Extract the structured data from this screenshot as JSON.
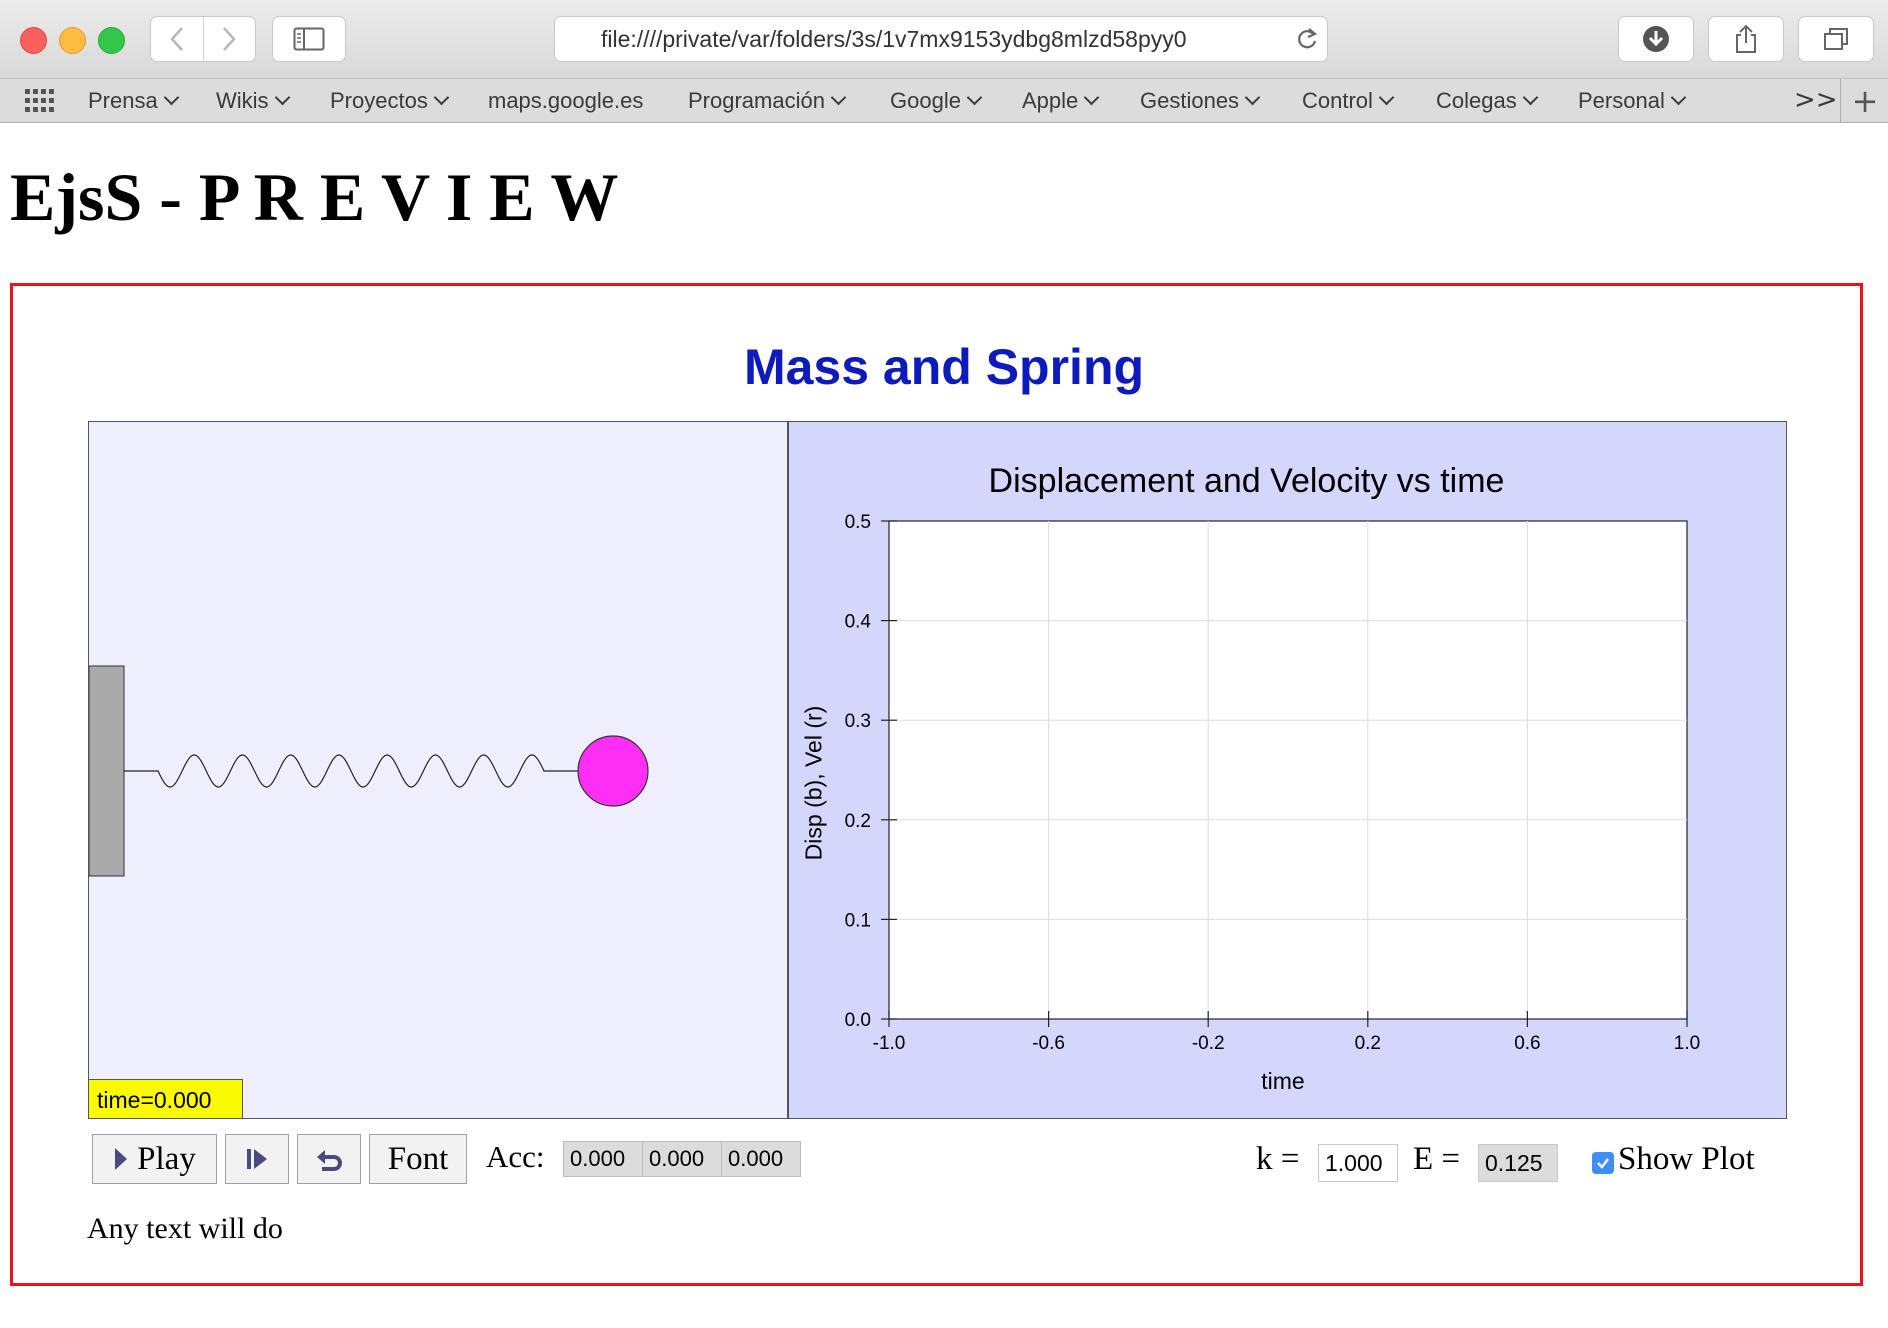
{
  "browser": {
    "url": "file:////private/var/folders/3s/1v7mx9153ydbg8mlzd58pyy0",
    "bookmarks": [
      {
        "label": "Prensa",
        "menu": true
      },
      {
        "label": "Wikis",
        "menu": true
      },
      {
        "label": "Proyectos",
        "menu": true
      },
      {
        "label": "maps.google.es",
        "menu": false
      },
      {
        "label": "Programación",
        "menu": true
      },
      {
        "label": "Google",
        "menu": true
      },
      {
        "label": "Apple",
        "menu": true
      },
      {
        "label": "Gestiones",
        "menu": true
      },
      {
        "label": "Control",
        "menu": true
      },
      {
        "label": "Colegas",
        "menu": true
      },
      {
        "label": "Personal",
        "menu": true
      }
    ],
    "more_label": ">>",
    "new_tab_label": "+"
  },
  "page": {
    "heading": "EjsS - P R E V I E W",
    "sim_title": "Mass and Spring",
    "footer_text": "Any text will do"
  },
  "simulation": {
    "time_label": "time=0.000",
    "colors": {
      "ball": "#ff2ef5",
      "wall": "#aaaaaa",
      "time_label_bg": "#fbfb00"
    }
  },
  "plot": {
    "chart_data": {
      "type": "line",
      "title": "Displacement and Velocity vs time",
      "xlabel": "time",
      "ylabel": "Disp (b), Vel (r)",
      "xlim": [
        -1.0,
        1.0
      ],
      "ylim": [
        0.0,
        0.5
      ],
      "xticks": [
        "-1.0",
        "-0.6",
        "-0.2",
        "0.2",
        "0.6",
        "1.0"
      ],
      "yticks": [
        "0.0",
        "0.1",
        "0.2",
        "0.3",
        "0.4",
        "0.5"
      ],
      "grid": true,
      "series": []
    }
  },
  "controls": {
    "play_label": "Play",
    "font_label": "Font",
    "acc_label": "Acc:",
    "acc_values": [
      "0.000",
      "0.000",
      "0.000"
    ],
    "k_label": "k =",
    "k_value": "1.000",
    "e_label": "E =",
    "e_value": "0.125",
    "show_plot_label": "Show Plot",
    "show_plot_checked": true
  }
}
